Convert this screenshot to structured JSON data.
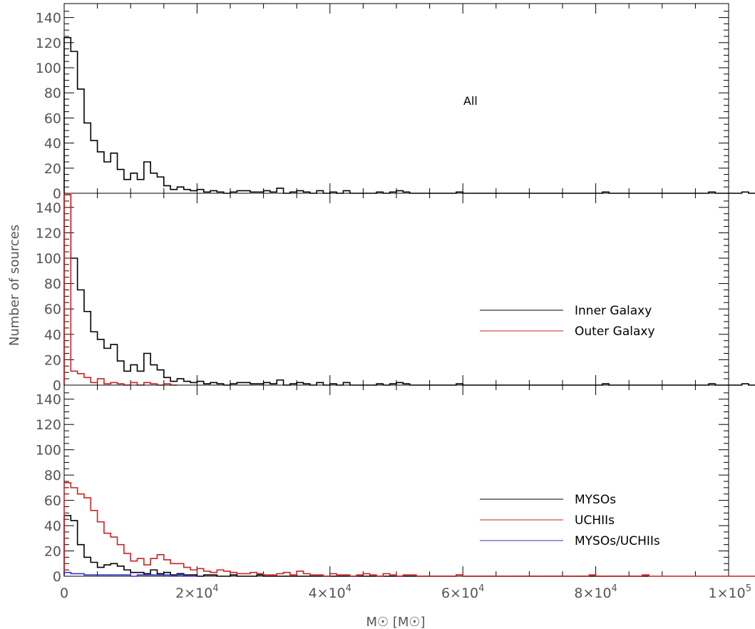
{
  "chart_data": [
    {
      "type": "histogram",
      "panel": "top",
      "annotation": "All",
      "xlim": [
        0,
        100000
      ],
      "ylim": [
        0,
        150
      ],
      "y_ticks": [
        0,
        20,
        40,
        60,
        80,
        100,
        120,
        140
      ],
      "y_tick_labels": [
        "0",
        "20",
        "40",
        "60",
        "80",
        "100",
        "120",
        "140"
      ],
      "bin_width": 1000,
      "legend": [],
      "series": [
        {
          "color": "#000000",
          "values": [
            124,
            113,
            83,
            56,
            42,
            33,
            25,
            32,
            19,
            11,
            16,
            11,
            25,
            16,
            13,
            6,
            3,
            5,
            3,
            2,
            3,
            1,
            2,
            1,
            0,
            1,
            2,
            2,
            1,
            1,
            2,
            1,
            4,
            0,
            1,
            2,
            1,
            0,
            2,
            0,
            1,
            0,
            2,
            0,
            0,
            0,
            0,
            1,
            0,
            1,
            2,
            1,
            0,
            0,
            0,
            0,
            0,
            0,
            0,
            1,
            0,
            0,
            0,
            0,
            0,
            0,
            0,
            0,
            0,
            0,
            0,
            0,
            0,
            0,
            0,
            0,
            0,
            0,
            0,
            0,
            0,
            1,
            0,
            0,
            0,
            0,
            0,
            0,
            0,
            0,
            0,
            0,
            0,
            0,
            0,
            0,
            0,
            1,
            0,
            0,
            0,
            0,
            1,
            0,
            0,
            0,
            0,
            0,
            1,
            0,
            0,
            0,
            0,
            0,
            0,
            0,
            0,
            0,
            0,
            0,
            0,
            0,
            0,
            0,
            0,
            0,
            0,
            0,
            1,
            1,
            1,
            1,
            0,
            0
          ]
        }
      ]
    },
    {
      "type": "histogram",
      "panel": "middle",
      "ylabel": "Number of sources",
      "xlim": [
        0,
        100000
      ],
      "ylim": [
        0,
        150
      ],
      "y_ticks": [
        0,
        20,
        40,
        60,
        80,
        100,
        120,
        140
      ],
      "y_tick_labels": [
        "0",
        "20",
        "40",
        "60",
        "80",
        "100",
        "120",
        "140"
      ],
      "bin_width": 1000,
      "legend": [
        {
          "label": "Inner Galaxy",
          "color": "#000000"
        },
        {
          "label": "Outer Galaxy",
          "color": "#cc2222"
        }
      ],
      "series": [
        {
          "name": "Inner Galaxy",
          "color": "#000000",
          "values": [
            150,
            100,
            75,
            58,
            42,
            36,
            29,
            32,
            19,
            11,
            16,
            11,
            25,
            16,
            12,
            6,
            3,
            5,
            3,
            2,
            3,
            1,
            2,
            1,
            0,
            1,
            2,
            2,
            1,
            1,
            2,
            1,
            4,
            0,
            1,
            2,
            1,
            0,
            2,
            0,
            1,
            0,
            2,
            0,
            0,
            0,
            0,
            1,
            0,
            1,
            2,
            1,
            0,
            0,
            0,
            0,
            0,
            0,
            0,
            1,
            0,
            0,
            0,
            0,
            0,
            0,
            0,
            0,
            0,
            0,
            0,
            0,
            0,
            0,
            0,
            0,
            0,
            0,
            0,
            0,
            0,
            1,
            0,
            0,
            0,
            0,
            0,
            0,
            0,
            0,
            0,
            0,
            0,
            0,
            0,
            0,
            0,
            1,
            0,
            0,
            0,
            0,
            1,
            0,
            0,
            0,
            0,
            0,
            1,
            0,
            0,
            0,
            0,
            0,
            0,
            0,
            0,
            0,
            0,
            0,
            0,
            0,
            0,
            0,
            0,
            0,
            0,
            0,
            1,
            1,
            1,
            1,
            0,
            0
          ]
        },
        {
          "name": "Outer Galaxy",
          "color": "#cc2222",
          "values": [
            150,
            11,
            9,
            6,
            2,
            5,
            1,
            2,
            1,
            0,
            2,
            0,
            2,
            1,
            0,
            1,
            0
          ]
        }
      ]
    },
    {
      "type": "histogram",
      "panel": "bottom",
      "xlabel": "M☉ [M☉]",
      "xlim": [
        0,
        100000
      ],
      "ylim": [
        0,
        150
      ],
      "y_ticks": [
        0,
        20,
        40,
        60,
        80,
        100,
        120,
        140
      ],
      "y_tick_labels": [
        "0",
        "20",
        "40",
        "60",
        "80",
        "100",
        "120",
        "140"
      ],
      "x_ticks": [
        0,
        20000,
        40000,
        60000,
        80000,
        100000
      ],
      "x_tick_mantissa": [
        "0",
        "2×10",
        "4×10",
        "6×10",
        "8×10",
        "1×10"
      ],
      "x_tick_exponent": [
        "",
        "4",
        "4",
        "4",
        "4",
        "5"
      ],
      "bin_width": 1000,
      "legend": [
        {
          "label": "MYSOs",
          "color": "#000000"
        },
        {
          "label": "UCHIIs",
          "color": "#cc2222"
        },
        {
          "label": "MYSOs/UCHIIs",
          "color": "#3333cc"
        }
      ],
      "series": [
        {
          "name": "MYSOs",
          "color": "#000000",
          "values": [
            48,
            44,
            25,
            15,
            11,
            7,
            9,
            10,
            8,
            5,
            3,
            3,
            2,
            5,
            2,
            3,
            1,
            2,
            1,
            1,
            0,
            1,
            1,
            0,
            0,
            1,
            0,
            0,
            0,
            1,
            0,
            0,
            0,
            0,
            0,
            0,
            0,
            0,
            0,
            0,
            0,
            0,
            0,
            0,
            0,
            0,
            0,
            0,
            0,
            0,
            0,
            0,
            0,
            0,
            0,
            0,
            0,
            0,
            0,
            1,
            0,
            0,
            0,
            0,
            0,
            0,
            0,
            0,
            0,
            0,
            0,
            0,
            0,
            0,
            0,
            0,
            0,
            0,
            0,
            0,
            0,
            0,
            0,
            0,
            0,
            0,
            0,
            0
          ]
        },
        {
          "name": "UCHIIs",
          "color": "#cc2222",
          "values": [
            74,
            70,
            65,
            62,
            52,
            43,
            34,
            31,
            25,
            18,
            12,
            14,
            9,
            14,
            17,
            13,
            10,
            10,
            7,
            5,
            6,
            4,
            3,
            5,
            4,
            3,
            2,
            2,
            3,
            2,
            1,
            1,
            2,
            3,
            1,
            4,
            2,
            1,
            1,
            0,
            2,
            1,
            1,
            0,
            1,
            2,
            1,
            0,
            2,
            1,
            0,
            1,
            1,
            0,
            0,
            0,
            0,
            0,
            0,
            1,
            0,
            0,
            0,
            0,
            0,
            0,
            0,
            0,
            0,
            0,
            0,
            0,
            0,
            0,
            0,
            0,
            0,
            0,
            0,
            1,
            0,
            0,
            0,
            0,
            0,
            0,
            0,
            1,
            0,
            0,
            0,
            0,
            0,
            0,
            0,
            0,
            0,
            0,
            0,
            0,
            0,
            0,
            0,
            0,
            0,
            0,
            0,
            0,
            0,
            0,
            0,
            0,
            0,
            0,
            0,
            0,
            0,
            0,
            0,
            0,
            0,
            0,
            0,
            0,
            1,
            1,
            1,
            1,
            0,
            0
          ]
        },
        {
          "name": "MYSOs/UCHIIs",
          "color": "#3333cc",
          "values": [
            3,
            2,
            2,
            1,
            1,
            1,
            1,
            1,
            1,
            1,
            0,
            1,
            1,
            1,
            1,
            1,
            0,
            1,
            0,
            0
          ]
        }
      ]
    }
  ]
}
